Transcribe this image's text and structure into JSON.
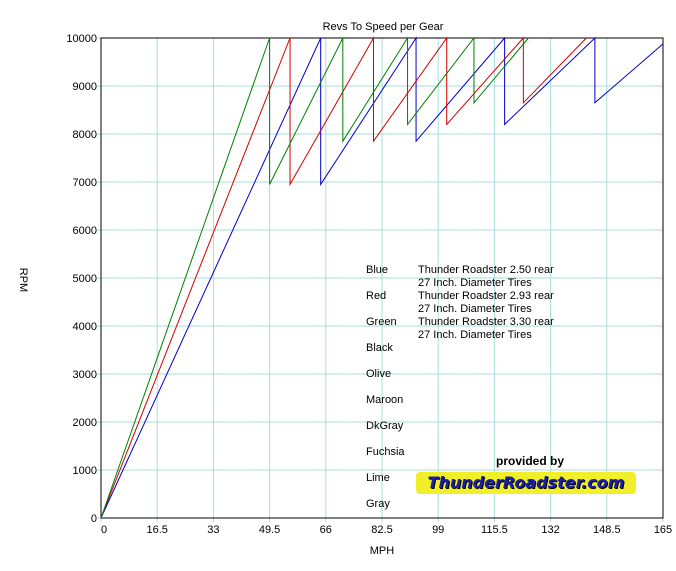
{
  "chart_data": {
    "type": "line",
    "title": "Revs To Speed per Gear",
    "xlabel": "MPH",
    "ylabel": "RPM",
    "xlim": [
      0,
      165
    ],
    "ylim": [
      0,
      10000
    ],
    "x_ticks": [
      0,
      16.5,
      33,
      49.5,
      66,
      82.5,
      99,
      115.5,
      132,
      148.5,
      165
    ],
    "x_tick_labels": [
      "0",
      "16.5",
      "33",
      "49.5",
      "66",
      "82.5",
      "99",
      "115.5",
      "132",
      "148.5",
      "165"
    ],
    "y_ticks": [
      0,
      1000,
      2000,
      3000,
      4000,
      5000,
      6000,
      7000,
      8000,
      9000,
      10000
    ],
    "y_tick_labels": [
      "0",
      "1000",
      "2000",
      "3000",
      "4000",
      "5000",
      "6000",
      "7000",
      "8000",
      "9000",
      "10000"
    ],
    "grid": true,
    "series": [
      {
        "name": "Blue",
        "color": "#0000c8",
        "points": [
          [
            0,
            0
          ],
          [
            64.5,
            10000
          ],
          [
            64.5,
            6950
          ],
          [
            92.5,
            10000
          ],
          [
            92.5,
            7850
          ],
          [
            118.5,
            10000
          ],
          [
            118.5,
            8200
          ],
          [
            145,
            10000
          ],
          [
            145,
            8650
          ],
          [
            167,
            10000
          ]
        ]
      },
      {
        "name": "Red",
        "color": "#d00000",
        "points": [
          [
            0,
            0
          ],
          [
            55.5,
            10000
          ],
          [
            55.5,
            6950
          ],
          [
            80,
            10000
          ],
          [
            80,
            7850
          ],
          [
            101.5,
            10000
          ],
          [
            101.5,
            8200
          ],
          [
            124,
            10000
          ],
          [
            124,
            8650
          ],
          [
            142.5,
            10000
          ]
        ]
      },
      {
        "name": "Green",
        "color": "#008000",
        "points": [
          [
            0,
            0
          ],
          [
            49.5,
            10000
          ],
          [
            49.5,
            6950
          ],
          [
            71,
            10000
          ],
          [
            71,
            7850
          ],
          [
            90,
            10000
          ],
          [
            90,
            8200
          ],
          [
            109.5,
            10000
          ],
          [
            109.5,
            8650
          ],
          [
            125.5,
            10000
          ]
        ]
      }
    ]
  },
  "legend": {
    "rows": [
      {
        "color_name": "Blue",
        "desc": "Thunder Roadster 2.50 rear\n27 Inch. Diameter Tires"
      },
      {
        "color_name": "Red",
        "desc": "Thunder Roadster 2.93 rear\n27 Inch. Diameter Tires"
      },
      {
        "color_name": "Green",
        "desc": "Thunder Roadster 3.30 rear\n27 Inch. Diameter Tires"
      },
      {
        "color_name": "Black",
        "desc": ""
      },
      {
        "color_name": "Olive",
        "desc": ""
      },
      {
        "color_name": "Maroon",
        "desc": ""
      },
      {
        "color_name": "DkGray",
        "desc": ""
      },
      {
        "color_name": "Fuchsia",
        "desc": ""
      },
      {
        "color_name": "Lime",
        "desc": ""
      },
      {
        "color_name": "Gray",
        "desc": ""
      }
    ]
  },
  "credit": {
    "provided_by": "provided by",
    "brand": "ThunderRoadster.com",
    "brand_bg": "#f1ef2a",
    "brand_fg": "#1a1fae"
  }
}
